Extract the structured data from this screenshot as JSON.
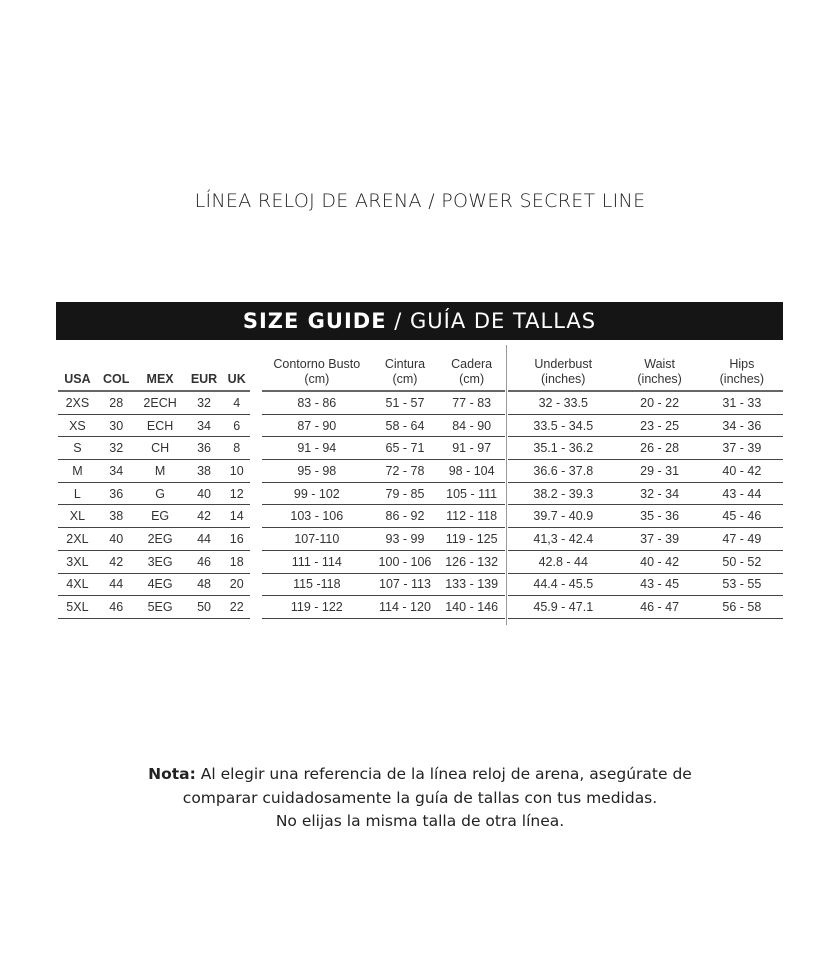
{
  "title": "LÍNEA RELOJ DE ARENA / POWER SECRET LINE",
  "banner": {
    "bold": "SIZE GUIDE",
    "rest": " / GUÍA DE TALLAS"
  },
  "size_table": {
    "headers": [
      "USA",
      "COL",
      "MEX",
      "EUR",
      "UK"
    ],
    "rows": [
      [
        "2XS",
        "28",
        "2ECH",
        "32",
        "4"
      ],
      [
        "XS",
        "30",
        "ECH",
        "34",
        "6"
      ],
      [
        "S",
        "32",
        "CH",
        "36",
        "8"
      ],
      [
        "M",
        "34",
        "M",
        "38",
        "10"
      ],
      [
        "L",
        "36",
        "G",
        "40",
        "12"
      ],
      [
        "XL",
        "38",
        "EG",
        "42",
        "14"
      ],
      [
        "2XL",
        "40",
        "2EG",
        "44",
        "16"
      ],
      [
        "3XL",
        "42",
        "3EG",
        "46",
        "18"
      ],
      [
        "4XL",
        "44",
        "4EG",
        "48",
        "20"
      ],
      [
        "5XL",
        "46",
        "5EG",
        "50",
        "22"
      ]
    ]
  },
  "cm_table": {
    "headers": [
      [
        "Contorno Busto",
        "(cm)"
      ],
      [
        "Cintura",
        "(cm)"
      ],
      [
        "Cadera",
        "(cm)"
      ]
    ],
    "rows": [
      [
        "83 - 86",
        "51 - 57",
        "77 - 83"
      ],
      [
        "87 - 90",
        "58 - 64",
        "84 - 90"
      ],
      [
        "91 - 94",
        "65 - 71",
        "91 - 97"
      ],
      [
        "95 - 98",
        "72 - 78",
        "98 - 104"
      ],
      [
        "99 - 102",
        "79 - 85",
        "105 - 111"
      ],
      [
        "103 - 106",
        "86 - 92",
        "112 - 118"
      ],
      [
        "107-110",
        "93 - 99",
        "119 - 125"
      ],
      [
        "111 - 114",
        "100 - 106",
        "126 - 132"
      ],
      [
        "115 -118",
        "107 - 113",
        "133 - 139"
      ],
      [
        "119 - 122",
        "114 - 120",
        "140 - 146"
      ]
    ]
  },
  "inch_table": {
    "headers": [
      [
        "Underbust",
        "(inches)"
      ],
      [
        "Waist",
        "(inches)"
      ],
      [
        "Hips",
        "(inches)"
      ]
    ],
    "rows": [
      [
        "32 - 33.5",
        "20 - 22",
        "31 - 33"
      ],
      [
        "33.5 - 34.5",
        "23 - 25",
        "34 - 36"
      ],
      [
        "35.1 - 36.2",
        "26 - 28",
        "37 - 39"
      ],
      [
        "36.6 - 37.8",
        "29 - 31",
        "40 - 42"
      ],
      [
        "38.2 - 39.3",
        "32 - 34",
        "43 - 44"
      ],
      [
        "39.7 - 40.9",
        "35 - 36",
        "45 - 46"
      ],
      [
        "41,3 - 42.4",
        "37 - 39",
        "47 - 49"
      ],
      [
        "42.8 - 44",
        "40 - 42",
        "50 - 52"
      ],
      [
        "44.4 - 45.5",
        "43 - 45",
        "53 - 55"
      ],
      [
        "45.9 - 47.1",
        "46 - 47",
        "56 - 58"
      ]
    ]
  },
  "note": {
    "label": "Nota:",
    "line1": " Al elegir una referencia de la línea reloj de arena, asegúrate de",
    "line2": "comparar cuidadosamente la guía de tallas con tus medidas.",
    "line3": "No elijas la misma talla de otra línea."
  }
}
